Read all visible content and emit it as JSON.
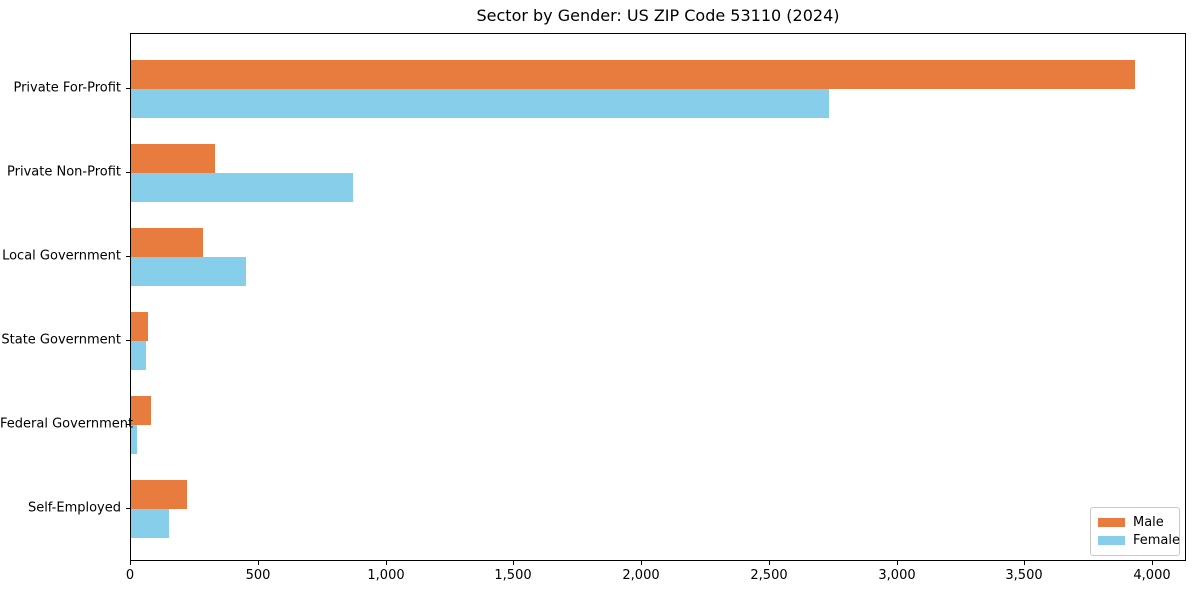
{
  "chart_data": {
    "type": "bar",
    "orientation": "horizontal",
    "title": "Sector by Gender: US ZIP Code 53110 (2024)",
    "categories": [
      "Private For-Profit",
      "Private Non-Profit",
      "Local Government",
      "State Government",
      "Federal Government",
      "Self-Employed"
    ],
    "series": [
      {
        "name": "Male",
        "color": "#e87c3e",
        "values": [
          3930,
          330,
          280,
          65,
          80,
          220
        ]
      },
      {
        "name": "Female",
        "color": "#87ceeb",
        "values": [
          2730,
          870,
          450,
          60,
          25,
          150
        ]
      }
    ],
    "xlim": [
      0,
      4000
    ],
    "x_ticks": [
      0,
      500,
      1000,
      1500,
      2000,
      2500,
      3000,
      3500,
      4000
    ],
    "x_tick_labels": [
      "0",
      "500",
      "1,000",
      "1,500",
      "2,000",
      "2,500",
      "3,000",
      "3,500",
      "4,000"
    ],
    "ylabel": "",
    "xlabel": "",
    "grid": false,
    "legend_position": "lower right",
    "background_color": "#ffffff",
    "spine_color": "#000000"
  }
}
